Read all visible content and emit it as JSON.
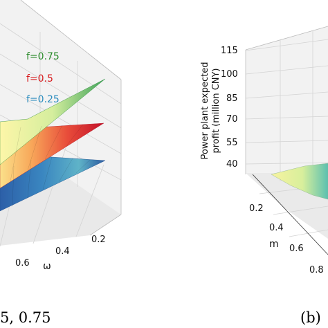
{
  "chart_data": [
    {
      "type": "surface3d",
      "panel": "a",
      "xlabel": "ω",
      "x_ticks": [
        "0.2",
        "0.4",
        "0.6"
      ],
      "legend_placement": "left",
      "series": [
        {
          "name": "f=0.75",
          "color": "#2a8a2a"
        },
        {
          "name": "f=0.5",
          "color": "#d7191c"
        },
        {
          "name": "f=0.25",
          "color": "#2b8cbe"
        }
      ],
      "caption_partial": "5, 0.75",
      "grid": true
    },
    {
      "type": "surface3d",
      "panel": "b",
      "zlabel": "Power plant expected profit (million CNY)",
      "zlabel_lines": [
        "Power plant expected",
        "profit (million CNY)"
      ],
      "z_ticks": [
        "115",
        "100",
        "85",
        "70",
        "55",
        "40"
      ],
      "ylabel": "m",
      "y_ticks": [
        "0.2",
        "0.4",
        "0.6",
        "0.8"
      ],
      "caption": "(b)",
      "grid": true
    }
  ]
}
